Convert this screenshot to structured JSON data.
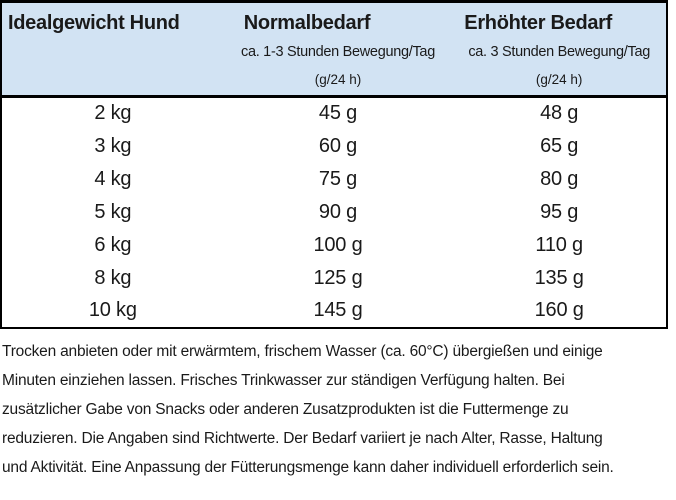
{
  "table": {
    "header": {
      "col1_title": "Idealgewicht Hund",
      "col2_title": "Normalbedarf",
      "col3_title": "Erhöhter Bedarf",
      "col2_subtitle": "ca. 1-3 Stunden Bewegung/Tag",
      "col3_subtitle": "ca. 3 Stunden Bewegung/Tag",
      "col2_unit": "(g/24 h)",
      "col3_unit": "(g/24 h)"
    },
    "rows": [
      {
        "weight": "2 kg",
        "normal": "45 g",
        "erhoeht": "48 g"
      },
      {
        "weight": "3 kg",
        "normal": "60 g",
        "erhoeht": "65 g"
      },
      {
        "weight": "4 kg",
        "normal": "75 g",
        "erhoeht": "80 g"
      },
      {
        "weight": "5 kg",
        "normal": "90 g",
        "erhoeht": "95 g"
      },
      {
        "weight": "6 kg",
        "normal": "100 g",
        "erhoeht": "110 g"
      },
      {
        "weight": "8 kg",
        "normal": "125 g",
        "erhoeht": "135 g"
      },
      {
        "weight": "10 kg",
        "normal": "145 g",
        "erhoeht": "160 g"
      }
    ]
  },
  "footnote": {
    "lines": [
      "Trocken anbieten oder mit erwärmtem, frischem Wasser (ca. 60°C) übergießen und einige",
      "Minuten einziehen lassen. Frisches Trinkwasser zur ständigen Verfügung halten. Bei",
      "zusätzlicher Gabe von Snacks oder anderen Zusatzprodukten ist die Futtermenge zu",
      "reduzieren. Die Angaben sind Richtwerte. Der Bedarf variiert je nach Alter, Rasse, Haltung",
      "und Aktivität. Eine Anpassung der Fütterungsmenge kann daher individuell erforderlich sein."
    ]
  },
  "colors": {
    "header_bg": "#d2e3f3",
    "border": "#000000",
    "text": "#1a1a1a"
  }
}
